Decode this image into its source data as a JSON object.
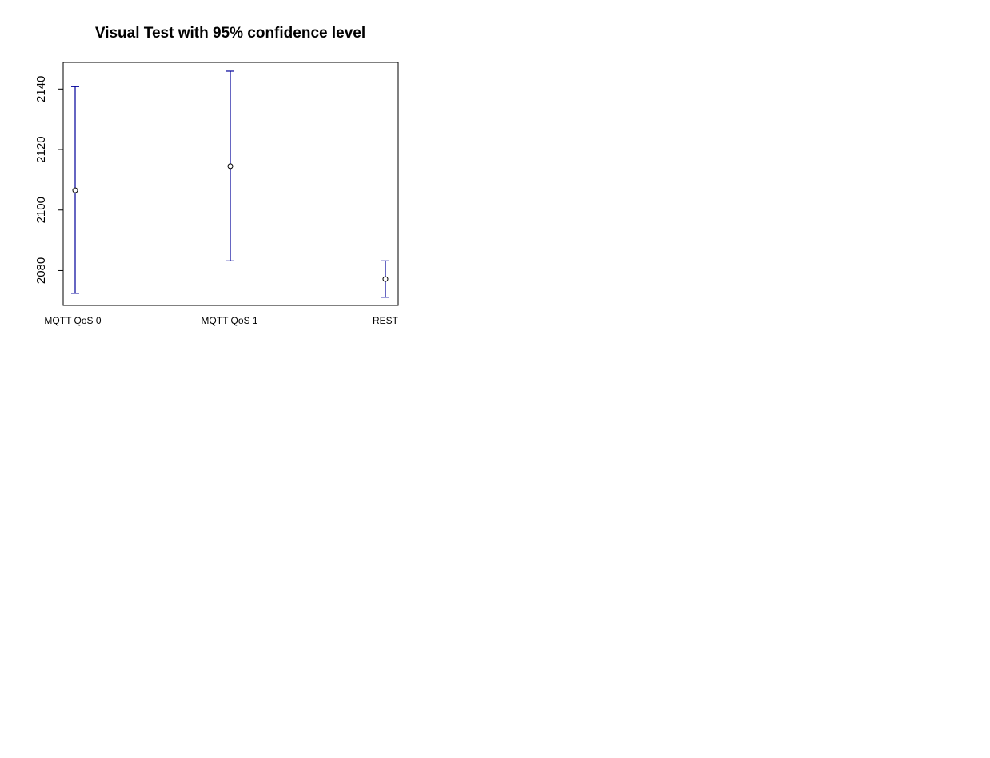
{
  "chart_data": {
    "type": "errorbar",
    "title": "Visual Test with 95% confidence level",
    "xlabel": "",
    "ylabel": "",
    "categories": [
      "MQTT QoS 0",
      "MQTT QoS 1",
      "REST"
    ],
    "series": [
      {
        "mean": [
          2106.5,
          2114.5,
          2077.2
        ],
        "lower": [
          2072.5,
          2083.2,
          2071.2
        ],
        "upper": [
          2140.8,
          2145.9,
          2083.2
        ]
      }
    ],
    "ylim": [
      2068.5,
      2148.8
    ],
    "yticks": [
      2080,
      2100,
      2120,
      2140
    ],
    "grid": false,
    "legend": "none",
    "colors": {
      "errorbar": "#00009a",
      "point": "#000000",
      "axis": "#000000"
    }
  }
}
